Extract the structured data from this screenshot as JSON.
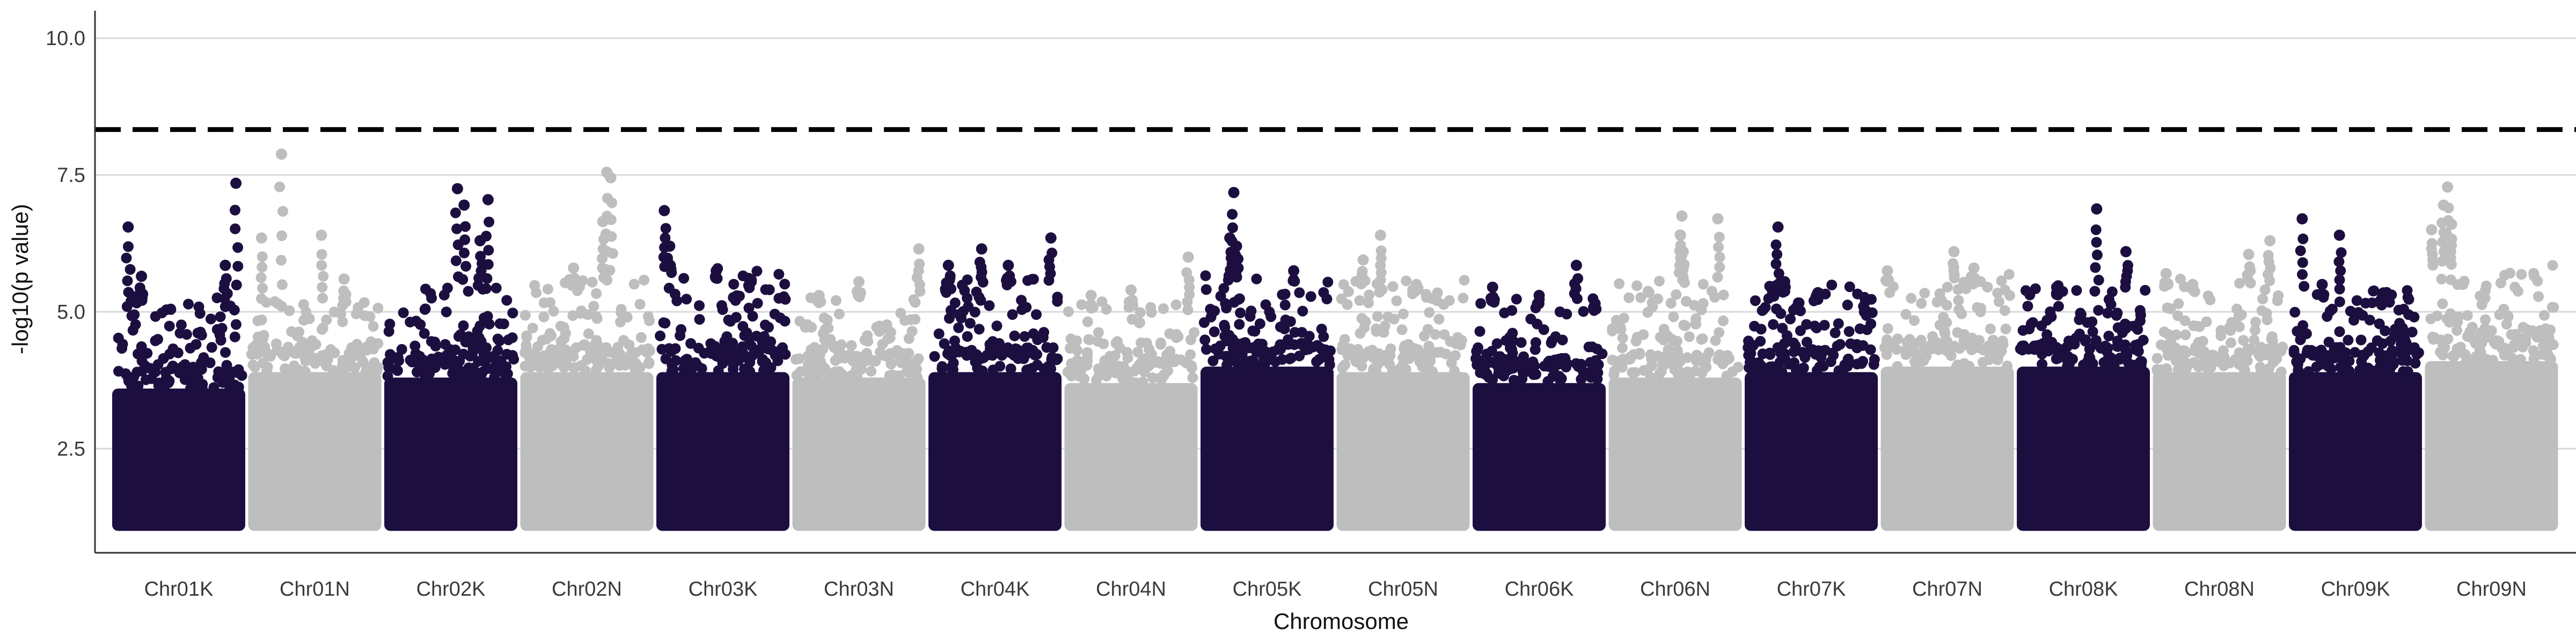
{
  "chart_data": {
    "type": "scatter",
    "title": "",
    "xlabel": "Chromosome",
    "ylabel": "-log10(p value)",
    "ylim": [
      0.6,
      10.5
    ],
    "y_ticks": [
      2.5,
      5.0,
      7.5,
      10.0
    ],
    "y_tick_labels": [
      "2.5",
      "5.0",
      "7.5",
      "10.0"
    ],
    "grid": "horizontal major lines",
    "threshold": 8.33,
    "colors": {
      "dark": "#1c0f40",
      "light": "#bebebe",
      "threshold": "#000000",
      "grid": "#d9d9d9"
    },
    "point_floor": 1.0,
    "chromosomes": [
      {
        "name": "Chr01K",
        "color": "dark",
        "dense_top": 3.6,
        "scatter_max": 5.3,
        "peaks": [
          [
            0.12,
            6.55
          ],
          [
            0.22,
            5.65
          ],
          [
            0.93,
            7.35
          ],
          [
            0.85,
            5.85
          ]
        ]
      },
      {
        "name": "Chr01N",
        "color": "light",
        "dense_top": 3.9,
        "scatter_max": 5.2,
        "peaks": [
          [
            0.25,
            7.88
          ],
          [
            0.1,
            6.35
          ],
          [
            0.55,
            6.4
          ],
          [
            0.72,
            5.6
          ]
        ]
      },
      {
        "name": "Chr02K",
        "color": "dark",
        "dense_top": 3.8,
        "scatter_max": 5.5,
        "peaks": [
          [
            0.55,
            7.25
          ],
          [
            0.6,
            6.95
          ],
          [
            0.78,
            7.05
          ],
          [
            0.72,
            6.3
          ]
        ]
      },
      {
        "name": "Chr02N",
        "color": "light",
        "dense_top": 3.9,
        "scatter_max": 5.6,
        "peaks": [
          [
            0.65,
            7.55
          ],
          [
            0.68,
            7.45
          ],
          [
            0.62,
            6.65
          ],
          [
            0.4,
            5.8
          ]
        ]
      },
      {
        "name": "Chr03K",
        "color": "dark",
        "dense_top": 3.9,
        "scatter_max": 5.8,
        "peaks": [
          [
            0.06,
            6.85
          ],
          [
            0.1,
            6.2
          ],
          [
            0.45,
            5.75
          ],
          [
            0.7,
            5.6
          ]
        ]
      },
      {
        "name": "Chr03N",
        "color": "light",
        "dense_top": 3.8,
        "scatter_max": 5.4,
        "peaks": [
          [
            0.95,
            6.15
          ],
          [
            0.5,
            5.55
          ],
          [
            0.2,
            5.3
          ]
        ]
      },
      {
        "name": "Chr04K",
        "color": "dark",
        "dense_top": 3.9,
        "scatter_max": 5.6,
        "peaks": [
          [
            0.4,
            6.15
          ],
          [
            0.92,
            6.35
          ],
          [
            0.15,
            5.85
          ],
          [
            0.6,
            5.85
          ]
        ]
      },
      {
        "name": "Chr04N",
        "color": "light",
        "dense_top": 3.7,
        "scatter_max": 5.2,
        "peaks": [
          [
            0.93,
            6.0
          ],
          [
            0.5,
            5.4
          ],
          [
            0.2,
            5.3
          ]
        ]
      },
      {
        "name": "Chr05K",
        "color": "dark",
        "dense_top": 4.0,
        "scatter_max": 5.7,
        "peaks": [
          [
            0.25,
            7.18
          ],
          [
            0.22,
            6.35
          ],
          [
            0.27,
            6.2
          ],
          [
            0.7,
            5.75
          ]
        ]
      },
      {
        "name": "Chr05N",
        "color": "light",
        "dense_top": 3.9,
        "scatter_max": 5.6,
        "peaks": [
          [
            0.33,
            6.4
          ],
          [
            0.2,
            5.95
          ],
          [
            0.6,
            5.5
          ]
        ]
      },
      {
        "name": "Chr06K",
        "color": "dark",
        "dense_top": 3.7,
        "scatter_max": 5.3,
        "peaks": [
          [
            0.78,
            5.85
          ],
          [
            0.15,
            5.45
          ],
          [
            0.5,
            5.3
          ],
          [
            0.92,
            5.15
          ]
        ]
      },
      {
        "name": "Chr06N",
        "color": "light",
        "dense_top": 3.8,
        "scatter_max": 5.6,
        "peaks": [
          [
            0.55,
            6.75
          ],
          [
            0.54,
            6.4
          ],
          [
            0.56,
            6.1
          ],
          [
            0.82,
            6.7
          ]
        ]
      },
      {
        "name": "Chr07K",
        "color": "dark",
        "dense_top": 3.9,
        "scatter_max": 5.5,
        "peaks": [
          [
            0.25,
            6.55
          ],
          [
            0.3,
            5.55
          ],
          [
            0.55,
            5.35
          ],
          [
            0.9,
            5.0
          ]
        ]
      },
      {
        "name": "Chr07N",
        "color": "light",
        "dense_top": 4.0,
        "scatter_max": 5.7,
        "peaks": [
          [
            0.55,
            6.1
          ],
          [
            0.05,
            5.75
          ],
          [
            0.7,
            5.8
          ]
        ]
      },
      {
        "name": "Chr08K",
        "color": "dark",
        "dense_top": 4.0,
        "scatter_max": 5.5,
        "peaks": [
          [
            0.6,
            6.88
          ],
          [
            0.82,
            6.1
          ],
          [
            0.3,
            5.45
          ]
        ]
      },
      {
        "name": "Chr08N",
        "color": "light",
        "dense_top": 3.9,
        "scatter_max": 5.6,
        "peaks": [
          [
            0.88,
            6.3
          ],
          [
            0.72,
            6.05
          ],
          [
            0.1,
            5.7
          ],
          [
            0.3,
            5.5
          ]
        ]
      },
      {
        "name": "Chr09K",
        "color": "dark",
        "dense_top": 3.9,
        "scatter_max": 5.4,
        "peaks": [
          [
            0.1,
            6.7
          ],
          [
            0.38,
            6.4
          ],
          [
            0.7,
            5.25
          ],
          [
            0.25,
            5.5
          ]
        ]
      },
      {
        "name": "Chr09N",
        "color": "light",
        "dense_top": 4.1,
        "scatter_max": 5.9,
        "peaks": [
          [
            0.17,
            7.28
          ],
          [
            0.14,
            6.95
          ],
          [
            0.05,
            6.5
          ],
          [
            0.2,
            6.6
          ]
        ]
      }
    ]
  }
}
